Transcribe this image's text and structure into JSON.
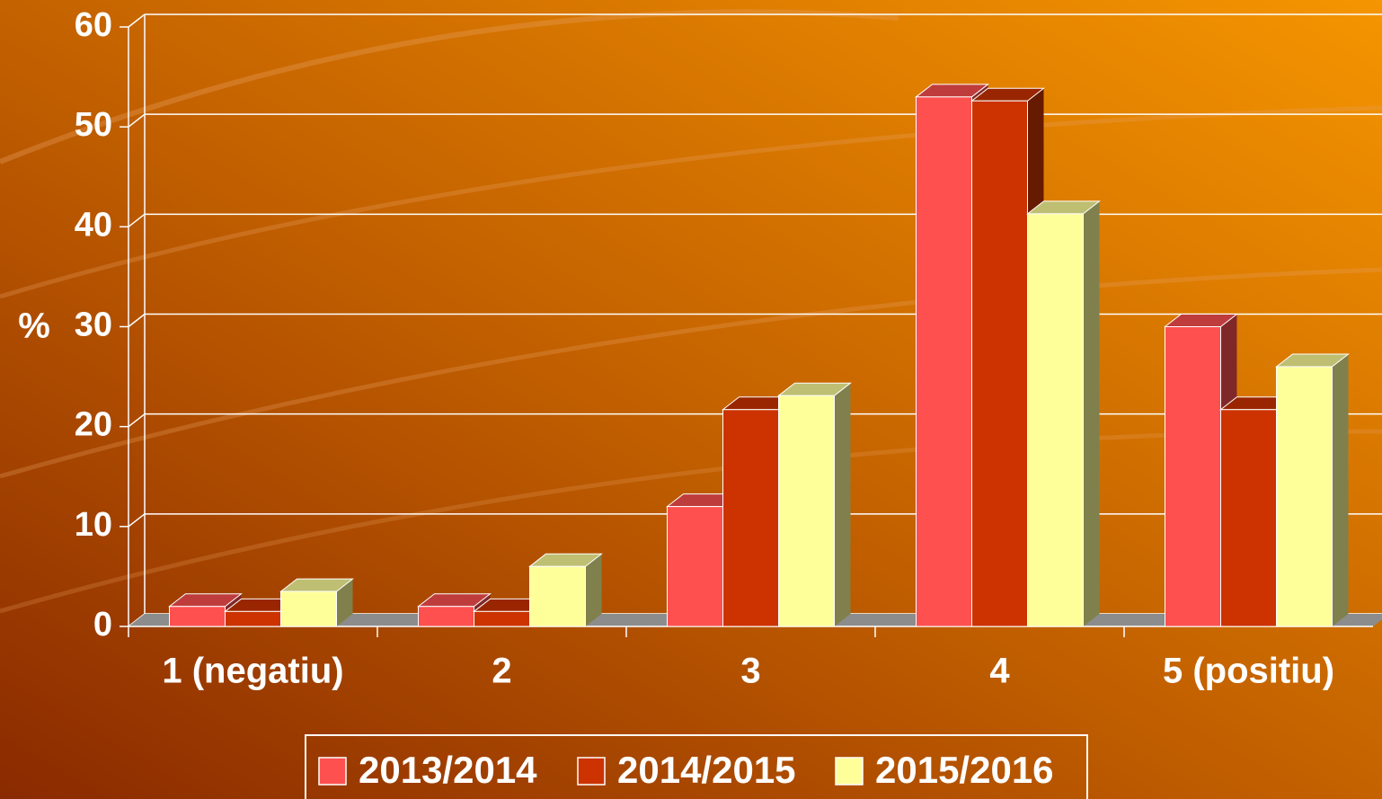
{
  "chart_data": {
    "type": "bar3d",
    "y_label": "%",
    "categories": [
      "1 (negatiu)",
      "2",
      "3",
      "4",
      "5 (positiu)"
    ],
    "series": [
      {
        "name": "2013/2014",
        "color": "#ff5050",
        "values": [
          2,
          2,
          12,
          53,
          30
        ]
      },
      {
        "name": "2014/2015",
        "color": "#cc3300",
        "values": [
          1.5,
          1.5,
          21.7,
          52.6,
          21.7
        ]
      },
      {
        "name": "2015/2016",
        "color": "#ffff99",
        "values": [
          3.5,
          6,
          23.1,
          41.3,
          26
        ]
      }
    ],
    "ylim": [
      0,
      60
    ],
    "yticks": [
      0,
      10,
      20,
      30,
      40,
      50,
      60
    ],
    "grid": true,
    "legend": "bottom"
  }
}
